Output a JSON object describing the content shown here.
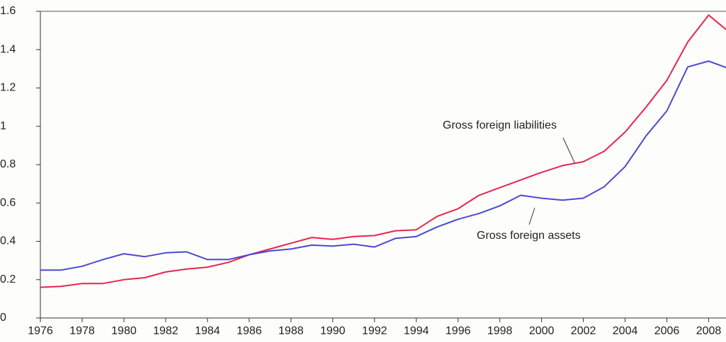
{
  "chart_data": {
    "type": "line",
    "x": [
      1976,
      1977,
      1978,
      1979,
      1980,
      1981,
      1982,
      1983,
      1984,
      1985,
      1986,
      1987,
      1988,
      1989,
      1990,
      1991,
      1992,
      1993,
      1994,
      1995,
      1996,
      1997,
      1998,
      1999,
      2000,
      2001,
      2002,
      2003,
      2004,
      2005,
      2006,
      2007,
      2008,
      2009
    ],
    "series": [
      {
        "name": "Gross foreign liabilities",
        "color": "#e5264c",
        "values": [
          0.16,
          0.165,
          0.18,
          0.18,
          0.2,
          0.21,
          0.24,
          0.255,
          0.265,
          0.29,
          0.33,
          0.36,
          0.39,
          0.42,
          0.41,
          0.425,
          0.43,
          0.455,
          0.46,
          0.53,
          0.57,
          0.64,
          0.68,
          0.72,
          0.76,
          0.795,
          0.815,
          0.87,
          0.97,
          1.1,
          1.24,
          1.44,
          1.58,
          1.49
        ]
      },
      {
        "name": "Gross foreign assets",
        "color": "#4a4ad2",
        "values": [
          0.25,
          0.25,
          0.27,
          0.305,
          0.335,
          0.32,
          0.34,
          0.345,
          0.305,
          0.305,
          0.33,
          0.35,
          0.36,
          0.38,
          0.375,
          0.385,
          0.37,
          0.415,
          0.425,
          0.475,
          0.515,
          0.545,
          0.585,
          0.64,
          0.625,
          0.615,
          0.625,
          0.685,
          0.79,
          0.95,
          1.08,
          1.31,
          1.34,
          1.3
        ]
      }
    ],
    "xlim": [
      1976,
      2009
    ],
    "xticks": [
      1976,
      1978,
      1980,
      1982,
      1984,
      1986,
      1988,
      1990,
      1992,
      1994,
      1996,
      1998,
      2000,
      2002,
      2004,
      2006,
      2008
    ],
    "ylim": [
      0,
      1.6
    ],
    "yticks": [
      0,
      0.2,
      0.4,
      0.6,
      0.8,
      1,
      1.2,
      1.4,
      1.6
    ],
    "grid": false
  }
}
